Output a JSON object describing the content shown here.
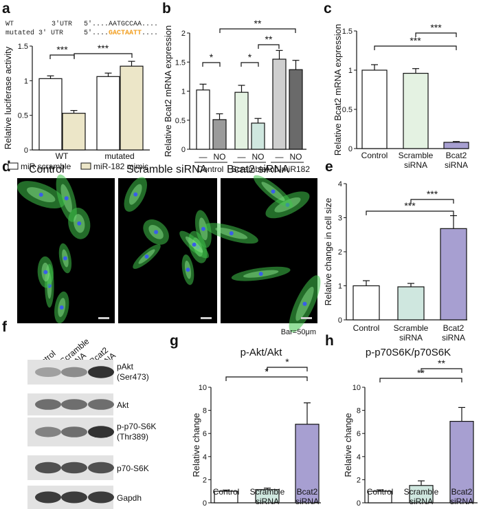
{
  "panel_labels": [
    "a",
    "b",
    "c",
    "d",
    "e",
    "f",
    "g",
    "h"
  ],
  "colors": {
    "white_bar": "#ffffff",
    "beige_bar": "#ece6c8",
    "light_green_bar": "#e4f2e2",
    "mint_bar": "#cfe7df",
    "gray_bar": "#9b9b9b",
    "light_gray_bar": "#cfcfcf",
    "dark_gray_bar": "#6a6a6a",
    "purple_bar": "#a79fd1",
    "mutation_orange": "#f2a024",
    "fluorescence_green": "#3fc44a",
    "nuclei_blue": "#3a5ee8"
  },
  "panel_a": {
    "utr": {
      "wt_label": "WT",
      "wt_region": "3'UTR",
      "wt_seq": "5'....AATGCCAA....",
      "mut_label": "mutated 3' UTR",
      "mut_prefix": "5'....",
      "mut_highlight": "GACTAATT",
      "mut_suffix": "...."
    }
  },
  "panel_d": {
    "titles": [
      "Control",
      "Scramble siRNA",
      "Bcat2 siRNA"
    ],
    "scale_bar": "Bar=50μm"
  },
  "panel_f": {
    "lanes": [
      "Control",
      "Scramble siRNA",
      "Bcat2 siRNA"
    ],
    "blots": [
      {
        "name": "pAkt (Ser473)",
        "label1": "pAkt",
        "label2": "(Ser473)",
        "intensity": [
          0.35,
          0.45,
          0.9
        ]
      },
      {
        "name": "Akt",
        "label1": "Akt",
        "label2": "",
        "intensity": [
          0.6,
          0.6,
          0.6
        ]
      },
      {
        "name": "p-p70-S6K (Thr389)",
        "label1": "p-p70-S6K",
        "label2": "(Thr389)",
        "intensity": [
          0.5,
          0.6,
          0.9
        ]
      },
      {
        "name": "p70-S6K",
        "label1": "p70-S6K",
        "label2": "",
        "intensity": [
          0.75,
          0.75,
          0.75
        ]
      },
      {
        "name": "Gapdh",
        "label1": "Gapdh",
        "label2": "",
        "intensity": [
          0.85,
          0.85,
          0.85
        ]
      }
    ]
  },
  "chart_data": [
    {
      "panel": "a",
      "type": "bar",
      "ylabel": "Relative luciferase activity",
      "ylim": [
        0,
        1.5
      ],
      "yticks": [
        0,
        0.5,
        1,
        1.5
      ],
      "groups": [
        "WT",
        "mutated"
      ],
      "series": [
        {
          "name": "miR scramble",
          "color": "#ffffff",
          "values": [
            1.03,
            1.06
          ],
          "errors": [
            0.04,
            0.05
          ]
        },
        {
          "name": "miR-182 mimic",
          "color": "#ece6c8",
          "values": [
            0.53,
            1.21
          ],
          "errors": [
            0.04,
            0.07
          ]
        }
      ],
      "legend": [
        "miR scramble",
        "miR-182 mimic"
      ],
      "significance": [
        "***",
        "***"
      ]
    },
    {
      "panel": "b",
      "type": "bar",
      "ylabel": "Relative Bcat2 mRNA expression",
      "ylim": [
        0,
        2
      ],
      "yticks": [
        0,
        0.5,
        1,
        1.5,
        2
      ],
      "groups": [
        "Control",
        "Scramble",
        "Anti-miR182"
      ],
      "sublabels": [
        "—",
        "NO",
        "—",
        "NO",
        "—",
        "NO"
      ],
      "values": [
        1.02,
        0.51,
        0.98,
        0.45,
        1.55,
        1.37
      ],
      "errors": [
        0.1,
        0.1,
        0.12,
        0.08,
        0.15,
        0.16
      ],
      "significance": [
        "*",
        "*",
        "**",
        "**"
      ]
    },
    {
      "panel": "c",
      "type": "bar",
      "ylabel": "Relative Bcat2 mRNA expression",
      "ylim": [
        0,
        1.5
      ],
      "yticks": [
        0,
        0.5,
        1,
        1.5
      ],
      "categories": [
        "Control",
        "Scramble siRNA",
        "Bcat2 siRNA"
      ],
      "values": [
        1.0,
        0.96,
        0.08
      ],
      "errors": [
        0.07,
        0.06,
        0.01
      ],
      "significance": [
        "***",
        "***"
      ]
    },
    {
      "panel": "e",
      "type": "bar",
      "ylabel": "Relative change in cell size",
      "ylim": [
        0,
        4
      ],
      "yticks": [
        0,
        1,
        2,
        3,
        4
      ],
      "categories": [
        "Control",
        "Scramble siRNA",
        "Bcat2 siRNA"
      ],
      "values": [
        1.0,
        0.97,
        2.68
      ],
      "errors": [
        0.15,
        0.1,
        0.38
      ],
      "significance": [
        "***",
        "***"
      ]
    },
    {
      "panel": "g",
      "type": "bar",
      "title": "p-Akt/Akt",
      "ylabel": "Relative change",
      "ylim": [
        0,
        10
      ],
      "yticks": [
        0,
        2,
        4,
        6,
        8,
        10
      ],
      "categories": [
        "Control",
        "Scramble siRNA",
        "Bcat2 siRNA"
      ],
      "values": [
        1.0,
        1.15,
        6.8
      ],
      "errors": [
        0.1,
        0.12,
        1.85
      ],
      "significance": [
        "*",
        "*"
      ]
    },
    {
      "panel": "h",
      "type": "bar",
      "title": "p-p70S6K/p70S6K",
      "ylabel": "Relative change",
      "ylim": [
        0,
        10
      ],
      "yticks": [
        0,
        2,
        4,
        6,
        8,
        10
      ],
      "categories": [
        "Control",
        "Scramble siRNA",
        "Bcat2 siRNA"
      ],
      "values": [
        1.0,
        1.5,
        7.05
      ],
      "errors": [
        0.12,
        0.4,
        1.2
      ],
      "significance": [
        "**",
        "**"
      ]
    }
  ]
}
